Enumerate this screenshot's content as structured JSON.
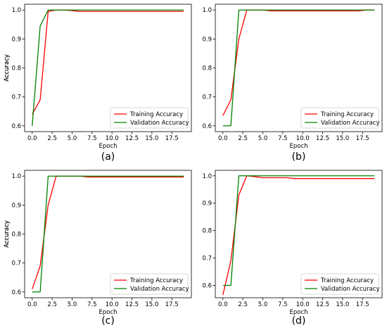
{
  "chart_data": [
    {
      "type": "line",
      "caption": "(a)",
      "xlabel": "Epoch",
      "ylabel": "Accuracy",
      "xlim": [
        -0.95,
        19.95
      ],
      "ylim": [
        0.58,
        1.02
      ],
      "xticks": [
        0.0,
        2.5,
        5.0,
        7.5,
        10.0,
        12.5,
        15.0,
        17.5
      ],
      "xtick_labels": [
        "0.0",
        "2.5",
        "5.0",
        "7.5",
        "10.0",
        "12.5",
        "15.0",
        "17.5"
      ],
      "yticks": [
        0.6,
        0.7,
        0.8,
        0.9,
        1.0
      ],
      "ytick_labels": [
        "0.6",
        "0.7",
        "0.8",
        "0.9",
        "1.0"
      ],
      "legend_position": "lower-right",
      "x": [
        0,
        1,
        2,
        3,
        4,
        5,
        6,
        7,
        8,
        9,
        10,
        11,
        12,
        13,
        14,
        15,
        16,
        17,
        18,
        19
      ],
      "series": [
        {
          "name": "Training Accuracy",
          "color": "#ff0000",
          "values": [
            0.64,
            0.69,
            0.995,
            1.0,
            1.0,
            0.998,
            0.995,
            0.995,
            0.995,
            0.995,
            0.995,
            0.995,
            0.995,
            0.995,
            0.995,
            0.995,
            0.995,
            0.995,
            0.995,
            0.995
          ]
        },
        {
          "name": "Validation Accuracy",
          "color": "#008000",
          "values": [
            0.6,
            0.945,
            1.0,
            1.0,
            1.0,
            1.0,
            1.0,
            1.0,
            1.0,
            1.0,
            1.0,
            1.0,
            1.0,
            1.0,
            1.0,
            1.0,
            1.0,
            1.0,
            1.0,
            1.0
          ]
        }
      ]
    },
    {
      "type": "line",
      "caption": "(b)",
      "xlabel": "Epoch",
      "ylabel": "Accuracy",
      "xlim": [
        -0.95,
        19.95
      ],
      "ylim": [
        0.58,
        1.02
      ],
      "xticks": [
        0.0,
        2.5,
        5.0,
        7.5,
        10.0,
        12.5,
        15.0,
        17.5
      ],
      "xtick_labels": [
        "0.0",
        "2.5",
        "5.0",
        "7.5",
        "10.0",
        "12.5",
        "15.0",
        "17.5"
      ],
      "yticks": [
        0.6,
        0.7,
        0.8,
        0.9,
        1.0
      ],
      "ytick_labels": [
        "0.6",
        "0.7",
        "0.8",
        "0.9",
        "1.0"
      ],
      "legend_position": "lower-right",
      "x": [
        0,
        1,
        2,
        3,
        4,
        5,
        6,
        7,
        8,
        9,
        10,
        11,
        12,
        13,
        14,
        15,
        16,
        17,
        18,
        19
      ],
      "series": [
        {
          "name": "Training Accuracy",
          "color": "#ff0000",
          "values": [
            0.635,
            0.69,
            0.9,
            1.0,
            1.0,
            1.0,
            0.997,
            0.997,
            0.997,
            0.997,
            0.997,
            0.997,
            0.997,
            0.997,
            0.997,
            0.997,
            0.997,
            0.997,
            1.0,
            1.0
          ]
        },
        {
          "name": "Validation Accuracy",
          "color": "#008000",
          "values": [
            0.6,
            0.6,
            1.0,
            1.0,
            1.0,
            1.0,
            1.0,
            1.0,
            1.0,
            1.0,
            1.0,
            1.0,
            1.0,
            1.0,
            1.0,
            1.0,
            1.0,
            1.0,
            1.0,
            1.0
          ]
        }
      ]
    },
    {
      "type": "line",
      "caption": "(c)",
      "xlabel": "Epoch",
      "ylabel": "Accuracy",
      "xlim": [
        -0.95,
        19.95
      ],
      "ylim": [
        0.58,
        1.02
      ],
      "xticks": [
        0.0,
        2.5,
        5.0,
        7.5,
        10.0,
        12.5,
        15.0,
        17.5
      ],
      "xtick_labels": [
        "0.0",
        "2.5",
        "5.0",
        "7.5",
        "10.0",
        "12.5",
        "15.0",
        "17.5"
      ],
      "yticks": [
        0.6,
        0.7,
        0.8,
        0.9,
        1.0
      ],
      "ytick_labels": [
        "0.6",
        "0.7",
        "0.8",
        "0.9",
        "1.0"
      ],
      "legend_position": "lower-right",
      "x": [
        0,
        1,
        2,
        3,
        4,
        5,
        6,
        7,
        8,
        9,
        10,
        11,
        12,
        13,
        14,
        15,
        16,
        17,
        18,
        19
      ],
      "series": [
        {
          "name": "Training Accuracy",
          "color": "#ff0000",
          "values": [
            0.61,
            0.69,
            0.9,
            1.0,
            1.0,
            1.0,
            1.0,
            0.997,
            0.997,
            0.997,
            0.997,
            0.997,
            0.997,
            0.997,
            0.997,
            0.997,
            0.997,
            0.997,
            0.997,
            0.997
          ]
        },
        {
          "name": "Validation Accuracy",
          "color": "#008000",
          "values": [
            0.6,
            0.6,
            1.0,
            1.0,
            1.0,
            1.0,
            1.0,
            1.0,
            1.0,
            1.0,
            1.0,
            1.0,
            1.0,
            1.0,
            1.0,
            1.0,
            1.0,
            1.0,
            1.0,
            1.0
          ]
        }
      ]
    },
    {
      "type": "line",
      "caption": "(d)",
      "xlabel": "Epoch",
      "ylabel": "Accuracy",
      "xlim": [
        -0.95,
        19.95
      ],
      "ylim": [
        0.555,
        1.02
      ],
      "xticks": [
        0.0,
        2.5,
        5.0,
        7.5,
        10.0,
        12.5,
        15.0,
        17.5
      ],
      "xtick_labels": [
        "0.0",
        "2.5",
        "5.0",
        "7.5",
        "10.0",
        "12.5",
        "15.0",
        "17.5"
      ],
      "yticks": [
        0.6,
        0.7,
        0.8,
        0.9,
        1.0
      ],
      "ytick_labels": [
        "0.6",
        "0.7",
        "0.8",
        "0.9",
        "1.0"
      ],
      "legend_position": "lower-right",
      "x": [
        0,
        1,
        2,
        3,
        4,
        5,
        6,
        7,
        8,
        9,
        10,
        11,
        12,
        13,
        14,
        15,
        16,
        17,
        18,
        19
      ],
      "series": [
        {
          "name": "Training Accuracy",
          "color": "#ff0000",
          "values": [
            0.565,
            0.69,
            0.93,
            1.0,
            0.997,
            0.993,
            0.993,
            0.993,
            0.993,
            0.99,
            0.99,
            0.99,
            0.99,
            0.99,
            0.99,
            0.99,
            0.99,
            0.99,
            0.99,
            0.99
          ]
        },
        {
          "name": "Validation Accuracy",
          "color": "#008000",
          "values": [
            0.6,
            0.6,
            1.0,
            1.0,
            1.0,
            1.0,
            1.0,
            1.0,
            1.0,
            1.0,
            1.0,
            1.0,
            1.0,
            1.0,
            1.0,
            1.0,
            1.0,
            1.0,
            1.0,
            1.0
          ]
        }
      ]
    }
  ]
}
